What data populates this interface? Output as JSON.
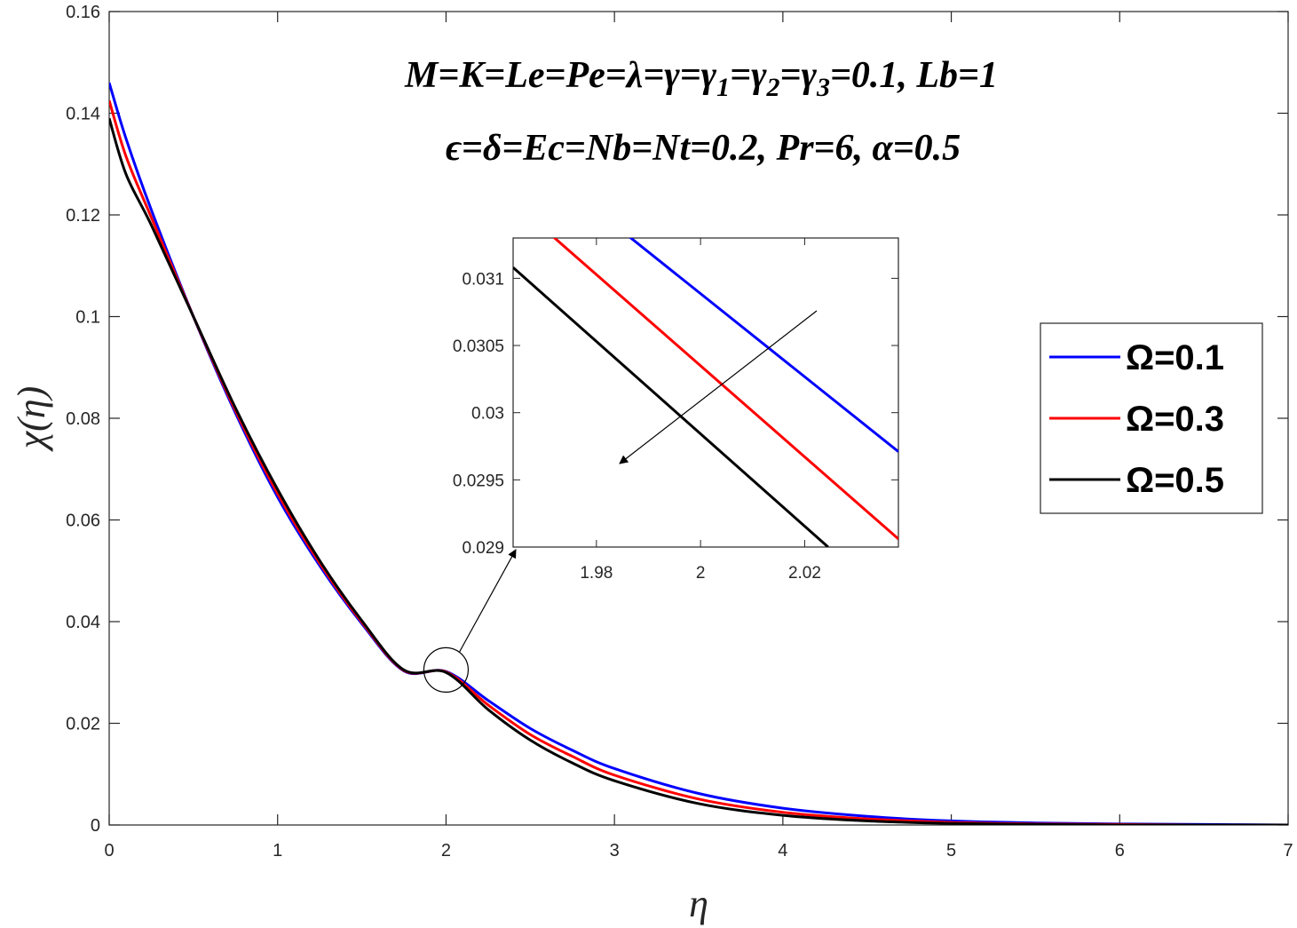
{
  "chart_data": {
    "type": "line",
    "title": "",
    "xlabel": "η",
    "ylabel": "χ(η)",
    "xlim": [
      0,
      7
    ],
    "ylim": [
      0,
      0.16
    ],
    "xticks": [
      "0",
      "1",
      "2",
      "3",
      "4",
      "5",
      "6",
      "7"
    ],
    "yticks": [
      "0",
      "0.02",
      "0.04",
      "0.06",
      "0.08",
      "0.1",
      "0.12",
      "0.14",
      "0.16"
    ],
    "x": [
      0,
      0.1,
      0.25,
      0.5,
      0.75,
      1.0,
      1.25,
      1.5,
      1.75,
      2.0,
      2.25,
      2.5,
      2.75,
      3.0,
      3.5,
      4.0,
      4.5,
      5.0,
      5.5,
      6.0,
      6.5,
      7.0
    ],
    "series": [
      {
        "name": "Ω=0.1",
        "color": "#0000ff",
        "values": [
          0.146,
          0.135,
          0.121,
          0.1,
          0.081,
          0.0645,
          0.051,
          0.0396,
          0.0303,
          0.0302,
          0.0245,
          0.019,
          0.0147,
          0.0111,
          0.0062,
          0.0033,
          0.0017,
          0.0008,
          0.0004,
          0.0002,
          0.0001,
          0.0
        ]
      },
      {
        "name": "Ω=0.3",
        "color": "#ff0000",
        "values": [
          0.1425,
          0.1315,
          0.1195,
          0.1,
          0.0815,
          0.0652,
          0.0515,
          0.0399,
          0.0304,
          0.0301,
          0.0236,
          0.0178,
          0.0135,
          0.0098,
          0.0051,
          0.0025,
          0.0012,
          0.0005,
          0.0002,
          0.0001,
          0.0,
          0.0
        ]
      },
      {
        "name": "Ω=0.5",
        "color": "#000000",
        "values": [
          0.139,
          0.128,
          0.118,
          0.1,
          0.082,
          0.066,
          0.052,
          0.0402,
          0.0305,
          0.03,
          0.0227,
          0.0167,
          0.0122,
          0.0087,
          0.0042,
          0.0019,
          0.0008,
          0.0003,
          0.0001,
          0.0,
          0.0,
          0.0
        ]
      }
    ],
    "annotations": [
      "M=K=Le=Pe=λ=γ=γ",
      "1",
      "=γ",
      "2",
      "=γ",
      "3",
      "=0.1, Lb=1",
      "ϵ=δ=Ec=Nb=Nt=0.2, Pr=6, α=0.5"
    ],
    "legend": {
      "placement": "right",
      "entries": [
        "Ω=0.1",
        "Ω=0.3",
        "Ω=0.5"
      ]
    },
    "inset": {
      "xlim": [
        1.964,
        2.038
      ],
      "ylim": [
        0.029,
        0.0313
      ],
      "xticks": [
        "1.98",
        "2",
        "2.02"
      ],
      "xtick_values": [
        1.98,
        2.0,
        2.02
      ],
      "yticks": [
        "0.029",
        "0.0295",
        "0.03",
        "0.0305",
        "0.031"
      ],
      "ytick_values": [
        0.029,
        0.0295,
        0.03,
        0.0305,
        0.031
      ],
      "lines": [
        {
          "name": "Ω=0.1",
          "color": "#0000ff",
          "x1": 1.985,
          "y1": 0.03135,
          "x2": 2.038,
          "y2": 0.02971
        },
        {
          "name": "Ω=0.3",
          "color": "#ff0000",
          "x1": 1.9705,
          "y1": 0.03135,
          "x2": 2.038,
          "y2": 0.02906
        },
        {
          "name": "Ω=0.5",
          "color": "#000000",
          "x1": 1.964,
          "y1": 0.03108,
          "x2": 2.0245,
          "y2": 0.029
        }
      ],
      "zoom_center": {
        "x": 2.0,
        "y": 0.0305
      }
    }
  }
}
